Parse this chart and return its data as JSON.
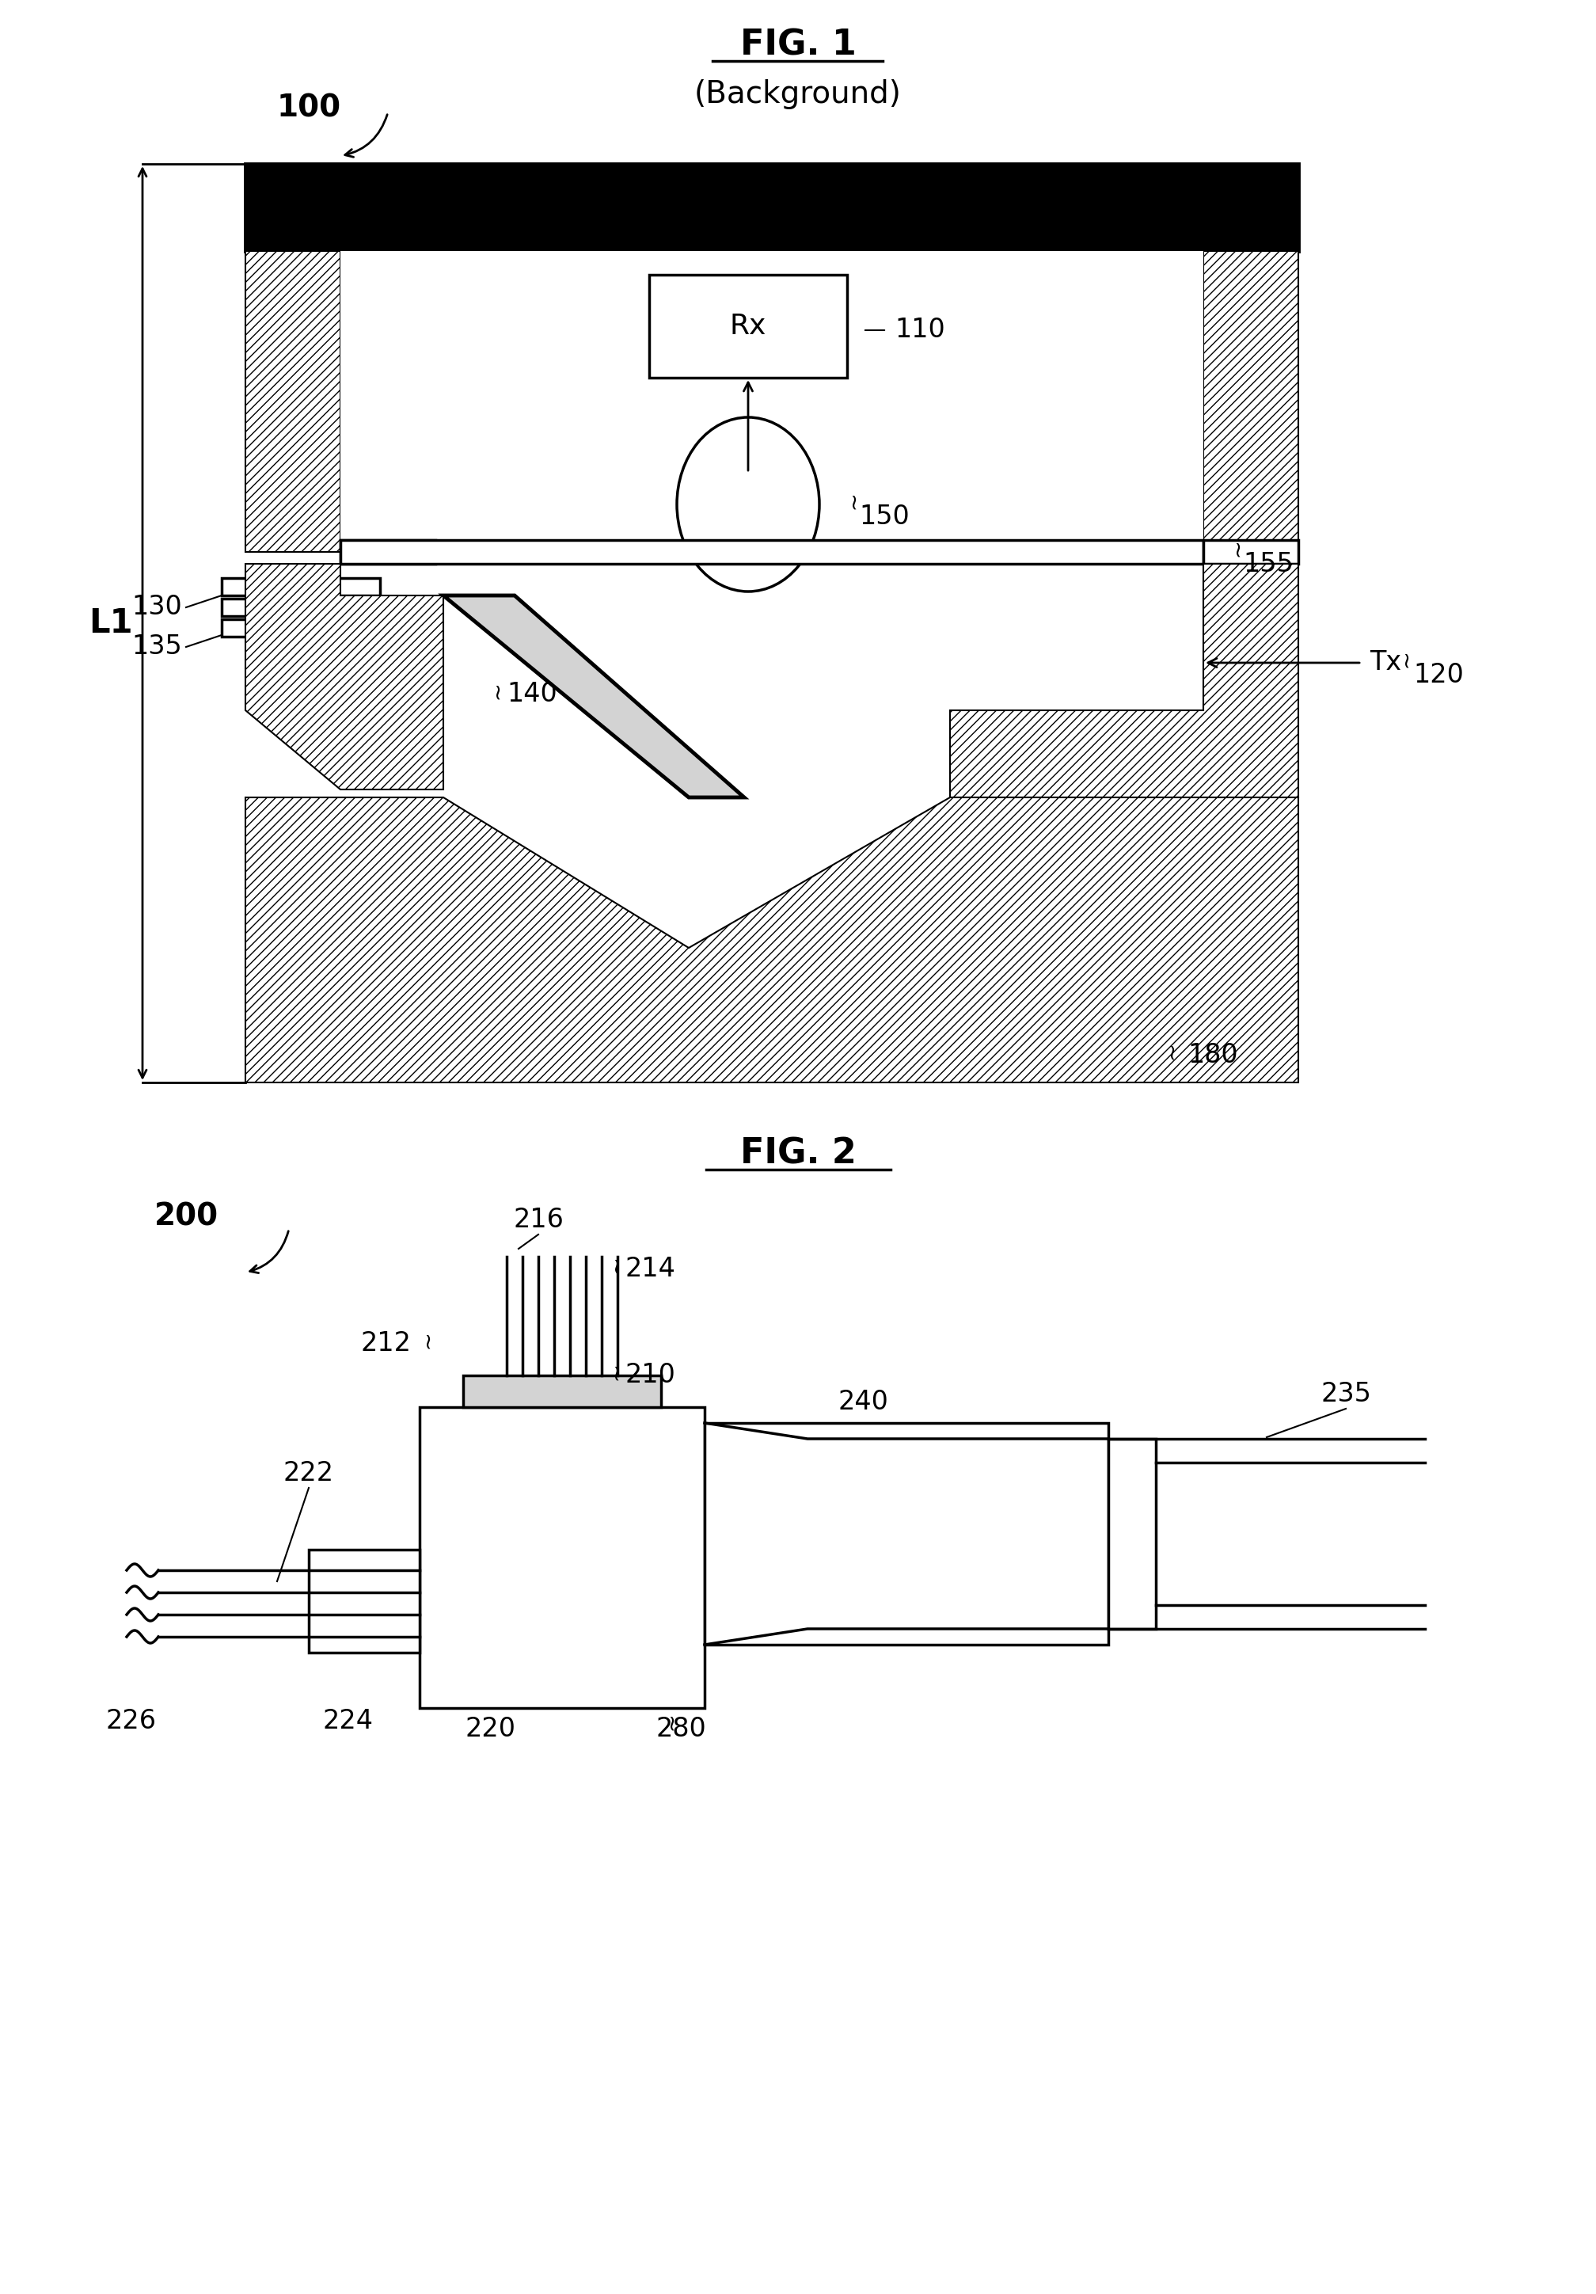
{
  "fig_title1": "FIG. 1",
  "fig_subtitle1": "(Background)",
  "fig_title2": "FIG. 2",
  "bg_color": "#ffffff",
  "line_color": "#000000",
  "hatch_color": "#000000",
  "label_100": "100",
  "label_110": "110",
  "label_120": "120",
  "label_130": "130",
  "label_135": "135",
  "label_140": "140",
  "label_150": "150",
  "label_155": "155",
  "label_180": "180",
  "label_L1": "L1",
  "label_200": "200",
  "label_210": "210",
  "label_212": "212",
  "label_214": "214",
  "label_216": "216",
  "label_220": "220",
  "label_222": "222",
  "label_224": "224",
  "label_226": "226",
  "label_235": "235",
  "label_240": "240",
  "label_280": "280",
  "label_Rx": "Rx",
  "label_Tx": "Tx"
}
